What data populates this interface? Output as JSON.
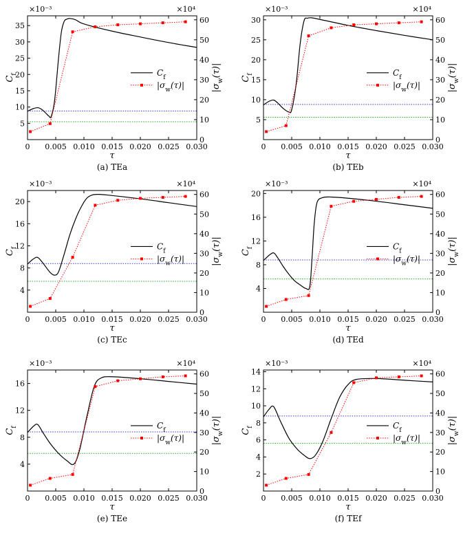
{
  "chart_data": [
    {
      "type": "line",
      "caption": "(a) TEa",
      "xlabel": "τ",
      "ylabel_left": "C_f",
      "ylabel_right": "|σ_w(τ)|",
      "left_multiplier": "×10⁻³",
      "right_multiplier": "×10⁴",
      "xlim": [
        0,
        0.03
      ],
      "x_ticks": [
        0,
        0.005,
        0.01,
        0.015,
        0.02,
        0.025,
        0.03
      ],
      "x_tick_labels": [
        "0",
        "0.005",
        "0.010",
        "0.015",
        "0.020",
        "0.025",
        "0.030"
      ],
      "ylim_left": [
        0,
        38
      ],
      "y_ticks_left": [
        5,
        10,
        15,
        20,
        25,
        30,
        35
      ],
      "ylim_right": [
        0,
        62
      ],
      "y_ticks_right": [
        0,
        10,
        20,
        30,
        40,
        50,
        60
      ],
      "legend_position": "center-right",
      "series": [
        {
          "name": "C_f",
          "axis": "left",
          "style": "solid",
          "color": "#000000",
          "x": [
            0,
            0.001,
            0.0018,
            0.0025,
            0.0032,
            0.0038,
            0.0042,
            0.0048,
            0.0055,
            0.006,
            0.0065,
            0.007,
            0.0075,
            0.0085,
            0.01,
            0.015,
            0.02,
            0.025,
            0.03
          ],
          "y": [
            8.7,
            9.5,
            9.8,
            9.3,
            8.2,
            7.2,
            7.1,
            12,
            25,
            33,
            36.3,
            37,
            37.2,
            36.8,
            35.5,
            33.3,
            31.5,
            29.8,
            28.3
          ]
        },
        {
          "name": "|σ_w(τ)|",
          "axis": "right",
          "style": "dotted",
          "color": "#ff0000",
          "x": [
            0.0005,
            0.004,
            0.008,
            0.012,
            0.016,
            0.02,
            0.024,
            0.028
          ],
          "y": [
            4,
            8,
            54,
            56.5,
            57.5,
            58,
            58.5,
            59
          ]
        }
      ],
      "hlines": [
        {
          "axis": "left",
          "y": 8.8,
          "color": "#3333cc"
        },
        {
          "axis": "left",
          "y": 5.5,
          "color": "#22aa22"
        }
      ]
    },
    {
      "type": "line",
      "caption": "(b) TEb",
      "xlabel": "τ",
      "ylabel_left": "C_f",
      "ylabel_right": "|σ_w(τ)|",
      "left_multiplier": "×10⁻³",
      "right_multiplier": "×10⁴",
      "xlim": [
        0,
        0.03
      ],
      "x_ticks": [
        0,
        0.005,
        0.01,
        0.015,
        0.02,
        0.025,
        0.03
      ],
      "x_tick_labels": [
        "0",
        "0.005",
        "0.010",
        "0.015",
        "0.020",
        "0.025",
        "0.030"
      ],
      "ylim_left": [
        0,
        31
      ],
      "y_ticks_left": [
        5,
        10,
        15,
        20,
        25,
        30
      ],
      "ylim_right": [
        0,
        62
      ],
      "y_ticks_right": [
        0,
        10,
        20,
        30,
        40,
        50,
        60
      ],
      "legend_position": "center-right",
      "series": [
        {
          "name": "C_f",
          "axis": "left",
          "style": "solid",
          "color": "#000000",
          "x": [
            0,
            0.001,
            0.0018,
            0.0025,
            0.0035,
            0.0045,
            0.005,
            0.0058,
            0.0065,
            0.0072,
            0.0078,
            0.0085,
            0.01,
            0.015,
            0.02,
            0.025,
            0.03
          ],
          "y": [
            8.7,
            9.6,
            9.9,
            9.2,
            7.8,
            6.9,
            7.5,
            14,
            24,
            29.8,
            30.4,
            30.5,
            30.1,
            28.6,
            27.3,
            26.1,
            25
          ]
        },
        {
          "name": "|σ_w(τ)|",
          "axis": "right",
          "style": "dotted",
          "color": "#ff0000",
          "x": [
            0.0005,
            0.004,
            0.008,
            0.012,
            0.016,
            0.02,
            0.024,
            0.028
          ],
          "y": [
            4,
            7,
            52,
            56,
            57.5,
            58,
            58.5,
            59
          ]
        }
      ],
      "hlines": [
        {
          "axis": "left",
          "y": 8.8,
          "color": "#3333cc"
        },
        {
          "axis": "left",
          "y": 5.6,
          "color": "#22aa22"
        }
      ]
    },
    {
      "type": "line",
      "caption": "(c) TEc",
      "xlabel": "τ",
      "ylabel_left": "C_f",
      "ylabel_right": "|σ_w(τ)|",
      "left_multiplier": "×10⁻³",
      "right_multiplier": "×10⁴",
      "xlim": [
        0,
        0.03
      ],
      "x_ticks": [
        0,
        0.005,
        0.01,
        0.015,
        0.02,
        0.025,
        0.03
      ],
      "x_tick_labels": [
        "0",
        "0.005",
        "0.010",
        "0.015",
        "0.020",
        "0.025",
        "0.030"
      ],
      "ylim_left": [
        0,
        22
      ],
      "y_ticks_left": [
        4,
        8,
        12,
        16,
        20
      ],
      "ylim_right": [
        0,
        62
      ],
      "y_ticks_right": [
        0,
        10,
        20,
        30,
        40,
        50,
        60
      ],
      "legend_position": "center-right",
      "series": [
        {
          "name": "C_f",
          "axis": "left",
          "style": "solid",
          "color": "#000000",
          "x": [
            0,
            0.001,
            0.0018,
            0.0028,
            0.004,
            0.0048,
            0.0055,
            0.0065,
            0.0075,
            0.0085,
            0.0095,
            0.0105,
            0.0115,
            0.0125,
            0.014,
            0.02,
            0.025,
            0.03
          ],
          "y": [
            8.7,
            9.6,
            9.9,
            8.8,
            7.2,
            6.7,
            7.3,
            10.5,
            14,
            16.8,
            19,
            20.6,
            21.2,
            21.3,
            21.2,
            20.5,
            19.8,
            19.1
          ]
        },
        {
          "name": "|σ_w(τ)|",
          "axis": "right",
          "style": "dotted",
          "color": "#ff0000",
          "x": [
            0.0005,
            0.004,
            0.008,
            0.012,
            0.016,
            0.02,
            0.024,
            0.028
          ],
          "y": [
            3,
            7,
            28,
            54.5,
            57,
            58,
            58.5,
            59
          ]
        }
      ],
      "hlines": [
        {
          "axis": "left",
          "y": 8.8,
          "color": "#3333cc"
        },
        {
          "axis": "left",
          "y": 5.6,
          "color": "#22aa22"
        }
      ]
    },
    {
      "type": "line",
      "caption": "(d) TEd",
      "xlabel": "τ",
      "ylabel_left": "C_f",
      "ylabel_right": "|σ_w(τ)|",
      "left_multiplier": "×10⁻³",
      "right_multiplier": "×10⁴",
      "xlim": [
        0,
        0.03
      ],
      "x_ticks": [
        0,
        0.005,
        0.01,
        0.015,
        0.02,
        0.025,
        0.03
      ],
      "x_tick_labels": [
        "0",
        "0.005",
        "0.010",
        "0.015",
        "0.020",
        "0.025",
        "0.030"
      ],
      "ylim_left": [
        0,
        20.5
      ],
      "y_ticks_left": [
        4,
        8,
        12,
        16,
        20
      ],
      "ylim_right": [
        0,
        62
      ],
      "y_ticks_right": [
        0,
        10,
        20,
        30,
        40,
        50,
        60
      ],
      "legend_position": "center-right",
      "series": [
        {
          "name": "C_f",
          "axis": "left",
          "style": "solid",
          "color": "#000000",
          "x": [
            0,
            0.001,
            0.0018,
            0.0025,
            0.0035,
            0.0045,
            0.0055,
            0.0065,
            0.0075,
            0.0082,
            0.0086,
            0.009,
            0.0095,
            0.0105,
            0.012,
            0.015,
            0.02,
            0.025,
            0.03
          ],
          "y": [
            8.7,
            9.6,
            10,
            9.2,
            7.7,
            6.4,
            5.3,
            4.6,
            4.0,
            4.3,
            9,
            15,
            18.5,
            19.3,
            19.4,
            19.2,
            18.7,
            18.1,
            17.5
          ]
        },
        {
          "name": "|σ_w(τ)|",
          "axis": "right",
          "style": "dotted",
          "color": "#ff0000",
          "x": [
            0.0005,
            0.004,
            0.008,
            0.012,
            0.016,
            0.02,
            0.024,
            0.028
          ],
          "y": [
            3,
            6.5,
            8.5,
            54,
            56.5,
            57.5,
            58.5,
            59
          ]
        }
      ],
      "hlines": [
        {
          "axis": "left",
          "y": 8.8,
          "color": "#3333cc"
        },
        {
          "axis": "left",
          "y": 5.6,
          "color": "#22aa22"
        }
      ]
    },
    {
      "type": "line",
      "caption": "(e) TEe",
      "xlabel": "τ",
      "ylabel_left": "C_f",
      "ylabel_right": "|σ_w(τ)|",
      "left_multiplier": "×10⁻³",
      "right_multiplier": "×10⁴",
      "xlim": [
        0,
        0.03
      ],
      "x_ticks": [
        0,
        0.005,
        0.01,
        0.015,
        0.02,
        0.025,
        0.03
      ],
      "x_tick_labels": [
        "0",
        "0.005",
        "0.010",
        "0.015",
        "0.020",
        "0.025",
        "0.030"
      ],
      "ylim_left": [
        0,
        18
      ],
      "y_ticks_left": [
        4,
        8,
        12,
        16
      ],
      "ylim_right": [
        0,
        62
      ],
      "y_ticks_right": [
        0,
        10,
        20,
        30,
        40,
        50,
        60
      ],
      "legend_position": "center-right",
      "series": [
        {
          "name": "C_f",
          "axis": "left",
          "style": "solid",
          "color": "#000000",
          "x": [
            0,
            0.001,
            0.0018,
            0.0028,
            0.004,
            0.0055,
            0.007,
            0.0082,
            0.0092,
            0.0105,
            0.0118,
            0.013,
            0.015,
            0.02,
            0.025,
            0.03
          ],
          "y": [
            8.7,
            9.6,
            9.9,
            8.6,
            7.1,
            5.6,
            4.5,
            4.0,
            6,
            11,
            15.5,
            16.8,
            17,
            16.7,
            16.3,
            15.9
          ]
        },
        {
          "name": "|σ_w(τ)|",
          "axis": "right",
          "style": "dotted",
          "color": "#ff0000",
          "x": [
            0.0005,
            0.004,
            0.008,
            0.012,
            0.016,
            0.02,
            0.024,
            0.028
          ],
          "y": [
            3,
            6.5,
            8.5,
            53.5,
            56.5,
            57.5,
            58.5,
            59
          ]
        }
      ],
      "hlines": [
        {
          "axis": "left",
          "y": 8.8,
          "color": "#3333cc"
        },
        {
          "axis": "left",
          "y": 5.6,
          "color": "#22aa22"
        }
      ]
    },
    {
      "type": "line",
      "caption": "(f) TEf",
      "xlabel": "τ",
      "ylabel_left": "C_f",
      "ylabel_right": "|σ_w(τ)|",
      "left_multiplier": "×10⁻³",
      "right_multiplier": "×10⁴",
      "xlim": [
        0,
        0.03
      ],
      "x_ticks": [
        0,
        0.005,
        0.01,
        0.015,
        0.02,
        0.025,
        0.03
      ],
      "x_tick_labels": [
        "0",
        "0.005",
        "0.010",
        "0.015",
        "0.020",
        "0.025",
        "0.030"
      ],
      "ylim_left": [
        0,
        14.2
      ],
      "y_ticks_left": [
        2,
        4,
        6,
        8,
        10,
        12,
        14
      ],
      "ylim_right": [
        0,
        62
      ],
      "y_ticks_right": [
        0,
        10,
        20,
        30,
        40,
        50,
        60
      ],
      "legend_position": "center-right",
      "series": [
        {
          "name": "C_f",
          "axis": "left",
          "style": "solid",
          "color": "#000000",
          "x": [
            0,
            0.001,
            0.0018,
            0.003,
            0.0045,
            0.006,
            0.0072,
            0.0082,
            0.0092,
            0.0105,
            0.012,
            0.0135,
            0.015,
            0.0165,
            0.02,
            0.025,
            0.03
          ],
          "y": [
            8.7,
            9.6,
            9.9,
            8.2,
            6.2,
            4.9,
            4.2,
            3.8,
            4.2,
            5.8,
            8.5,
            11,
            12.5,
            13.1,
            13.2,
            13,
            12.8
          ]
        },
        {
          "name": "|σ_w(τ)|",
          "axis": "right",
          "style": "dotted",
          "color": "#ff0000",
          "x": [
            0.0005,
            0.004,
            0.008,
            0.012,
            0.016,
            0.02,
            0.024,
            0.028
          ],
          "y": [
            3,
            6.5,
            8.5,
            30,
            55.5,
            58,
            58.5,
            59
          ]
        }
      ],
      "hlines": [
        {
          "axis": "left",
          "y": 8.8,
          "color": "#3333cc"
        },
        {
          "axis": "left",
          "y": 5.6,
          "color": "#22aa22"
        }
      ]
    }
  ]
}
